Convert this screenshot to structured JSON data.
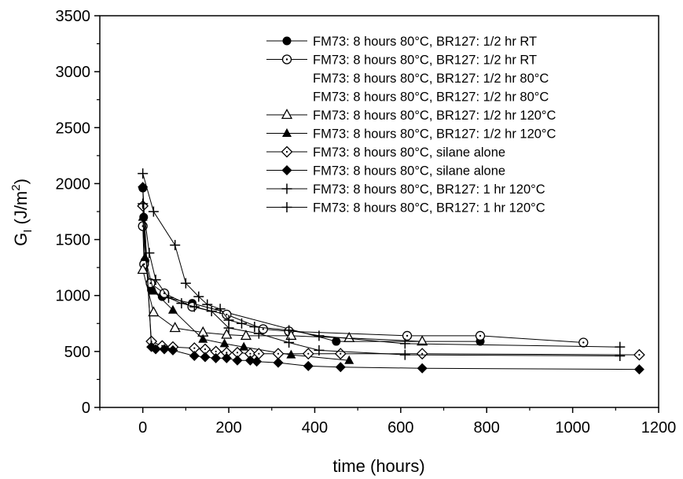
{
  "chart_data": {
    "type": "scatter",
    "xlabel": "time (hours)",
    "ylabel": "G",
    "ylabel_subscript": "I",
    "ylabel_unit_prefix": " (J/m",
    "ylabel_unit_exp": "2",
    "ylabel_unit_suffix": ")",
    "xlim": [
      -100,
      1200
    ],
    "ylim": [
      0,
      3500
    ],
    "x_ticks": [
      0,
      200,
      400,
      600,
      800,
      1000,
      1200
    ],
    "y_ticks": [
      0,
      500,
      1000,
      1500,
      2000,
      2500,
      3000,
      3500
    ],
    "grid": false,
    "legend_position": "top-right",
    "series": [
      {
        "name": "FM73: 8 hours 80°C, BR127: 1/2 hr RT",
        "marker": "filled-circle",
        "points": [
          [
            0,
            1960
          ],
          [
            2,
            1700
          ],
          [
            5,
            1310
          ],
          [
            20,
            1050
          ],
          [
            45,
            990
          ],
          [
            115,
            930
          ],
          [
            450,
            590
          ],
          [
            785,
            590
          ]
        ]
      },
      {
        "name": "FM73: 8 hours 80°C, BR127: 1/2 hr RT",
        "marker": "open-circle",
        "points": [
          [
            0,
            1620
          ],
          [
            3,
            1280
          ],
          [
            18,
            1110
          ],
          [
            50,
            1020
          ],
          [
            115,
            900
          ],
          [
            195,
            830
          ],
          [
            280,
            700
          ],
          [
            340,
            680
          ],
          [
            615,
            640
          ],
          [
            785,
            640
          ],
          [
            1025,
            580
          ]
        ]
      },
      {
        "name": "FM73: 8 hours 80°C, BR127: 1/2 hr 80°C",
        "marker": "none",
        "points": []
      },
      {
        "name": "FM73: 8 hours 80°C, BR127: 1/2 hr 80°C",
        "marker": "none",
        "points": []
      },
      {
        "name": "FM73: 8 hours 80°C, BR127: 1/2 hr 120°C",
        "marker": "open-triangle",
        "points": [
          [
            0,
            1230
          ],
          [
            25,
            850
          ],
          [
            75,
            710
          ],
          [
            140,
            670
          ],
          [
            195,
            650
          ],
          [
            240,
            640
          ],
          [
            345,
            640
          ],
          [
            480,
            620
          ],
          [
            650,
            590
          ]
        ]
      },
      {
        "name": "FM73: 8 hours 80°C, BR127: 1/2 hr 120°C",
        "marker": "filled-triangle",
        "points": [
          [
            0,
            1700
          ],
          [
            5,
            1340
          ],
          [
            25,
            1040
          ],
          [
            70,
            870
          ],
          [
            140,
            610
          ],
          [
            190,
            570
          ],
          [
            235,
            540
          ],
          [
            345,
            470
          ],
          [
            480,
            420
          ]
        ]
      },
      {
        "name": "FM73: 8 hours 80°C, silane alone",
        "marker": "open-diamond",
        "points": [
          [
            0,
            1800
          ],
          [
            20,
            590
          ],
          [
            45,
            550
          ],
          [
            70,
            540
          ],
          [
            120,
            530
          ],
          [
            145,
            520
          ],
          [
            170,
            500
          ],
          [
            195,
            490
          ],
          [
            220,
            490
          ],
          [
            250,
            480
          ],
          [
            270,
            480
          ],
          [
            315,
            480
          ],
          [
            385,
            480
          ],
          [
            460,
            480
          ],
          [
            650,
            480
          ],
          [
            1155,
            470
          ]
        ]
      },
      {
        "name": "FM73: 8 hours 80°C, silane alone",
        "marker": "filled-diamond",
        "points": [
          [
            0,
            1970
          ],
          [
            20,
            540
          ],
          [
            30,
            520
          ],
          [
            50,
            520
          ],
          [
            70,
            510
          ],
          [
            120,
            460
          ],
          [
            145,
            450
          ],
          [
            170,
            440
          ],
          [
            195,
            440
          ],
          [
            220,
            420
          ],
          [
            250,
            420
          ],
          [
            265,
            410
          ],
          [
            315,
            400
          ],
          [
            385,
            370
          ],
          [
            460,
            360
          ],
          [
            650,
            350
          ],
          [
            1155,
            340
          ]
        ]
      },
      {
        "name": "FM73: 8 hours 80°C, BR127: 1 hr 120°C",
        "marker": "plus",
        "points": [
          [
            0,
            2090
          ],
          [
            25,
            1750
          ],
          [
            75,
            1450
          ],
          [
            100,
            1110
          ],
          [
            130,
            990
          ],
          [
            150,
            920
          ],
          [
            180,
            880
          ],
          [
            200,
            780
          ],
          [
            230,
            750
          ],
          [
            260,
            720
          ],
          [
            340,
            690
          ],
          [
            410,
            640
          ],
          [
            610,
            570
          ],
          [
            1110,
            540
          ]
        ]
      },
      {
        "name": "FM73: 8 hours 80°C, BR127: 1 hr 120°C",
        "marker": "plus",
        "points": [
          [
            0,
            1820
          ],
          [
            15,
            1380
          ],
          [
            30,
            1140
          ],
          [
            60,
            980
          ],
          [
            90,
            930
          ],
          [
            120,
            900
          ],
          [
            160,
            860
          ],
          [
            200,
            710
          ],
          [
            270,
            660
          ],
          [
            340,
            580
          ],
          [
            410,
            510
          ],
          [
            610,
            470
          ],
          [
            1110,
            460
          ]
        ]
      }
    ]
  }
}
